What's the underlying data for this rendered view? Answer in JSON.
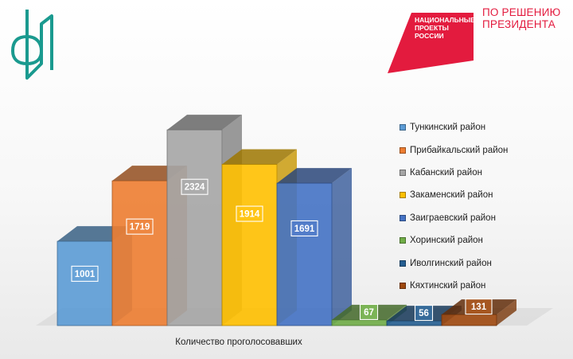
{
  "logo": {
    "icon": "fund-logo-icon",
    "color": "#1a9a8f"
  },
  "national_projects": {
    "lines": [
      "НАЦИОНАЛЬНЫЕ",
      "ПРОЕКТЫ",
      "РОССИИ"
    ],
    "color": "#e31b3e"
  },
  "decision": {
    "lines": [
      "ПО РЕШЕНИЮ",
      "ПРЕЗИДЕНТА"
    ],
    "color": "#e31b3e"
  },
  "chart_data": {
    "type": "bar",
    "variant": "3d-column",
    "xlabel": "Количество проголосовавших",
    "ylabel": "",
    "title": "",
    "ylim": [
      0,
      2600
    ],
    "grid": false,
    "legend_position": "right",
    "series": [
      {
        "name": "Тункинский район",
        "value": 1001,
        "label": "1001",
        "color": "#5b9bd5"
      },
      {
        "name": "Прибайкальский район",
        "value": 1719,
        "label": "1719",
        "color": "#ed7d31"
      },
      {
        "name": "Кабанский район",
        "value": 2324,
        "label": "2324",
        "color": "#a5a5a5"
      },
      {
        "name": "Закаменский район",
        "value": 1914,
        "label": "1914",
        "color": "#ffc000"
      },
      {
        "name": "Заиграевский район",
        "value": 1691,
        "label": "1691",
        "color": "#4472c4"
      },
      {
        "name": "Хоринский район",
        "value": 67,
        "label": "67",
        "color": "#70ad47"
      },
      {
        "name": "Иволгинский район",
        "value": 56,
        "label": "56",
        "color": "#255e91"
      },
      {
        "name": "Кяхтинский район",
        "value": 131,
        "label": "131",
        "color": "#9e480e"
      }
    ]
  }
}
